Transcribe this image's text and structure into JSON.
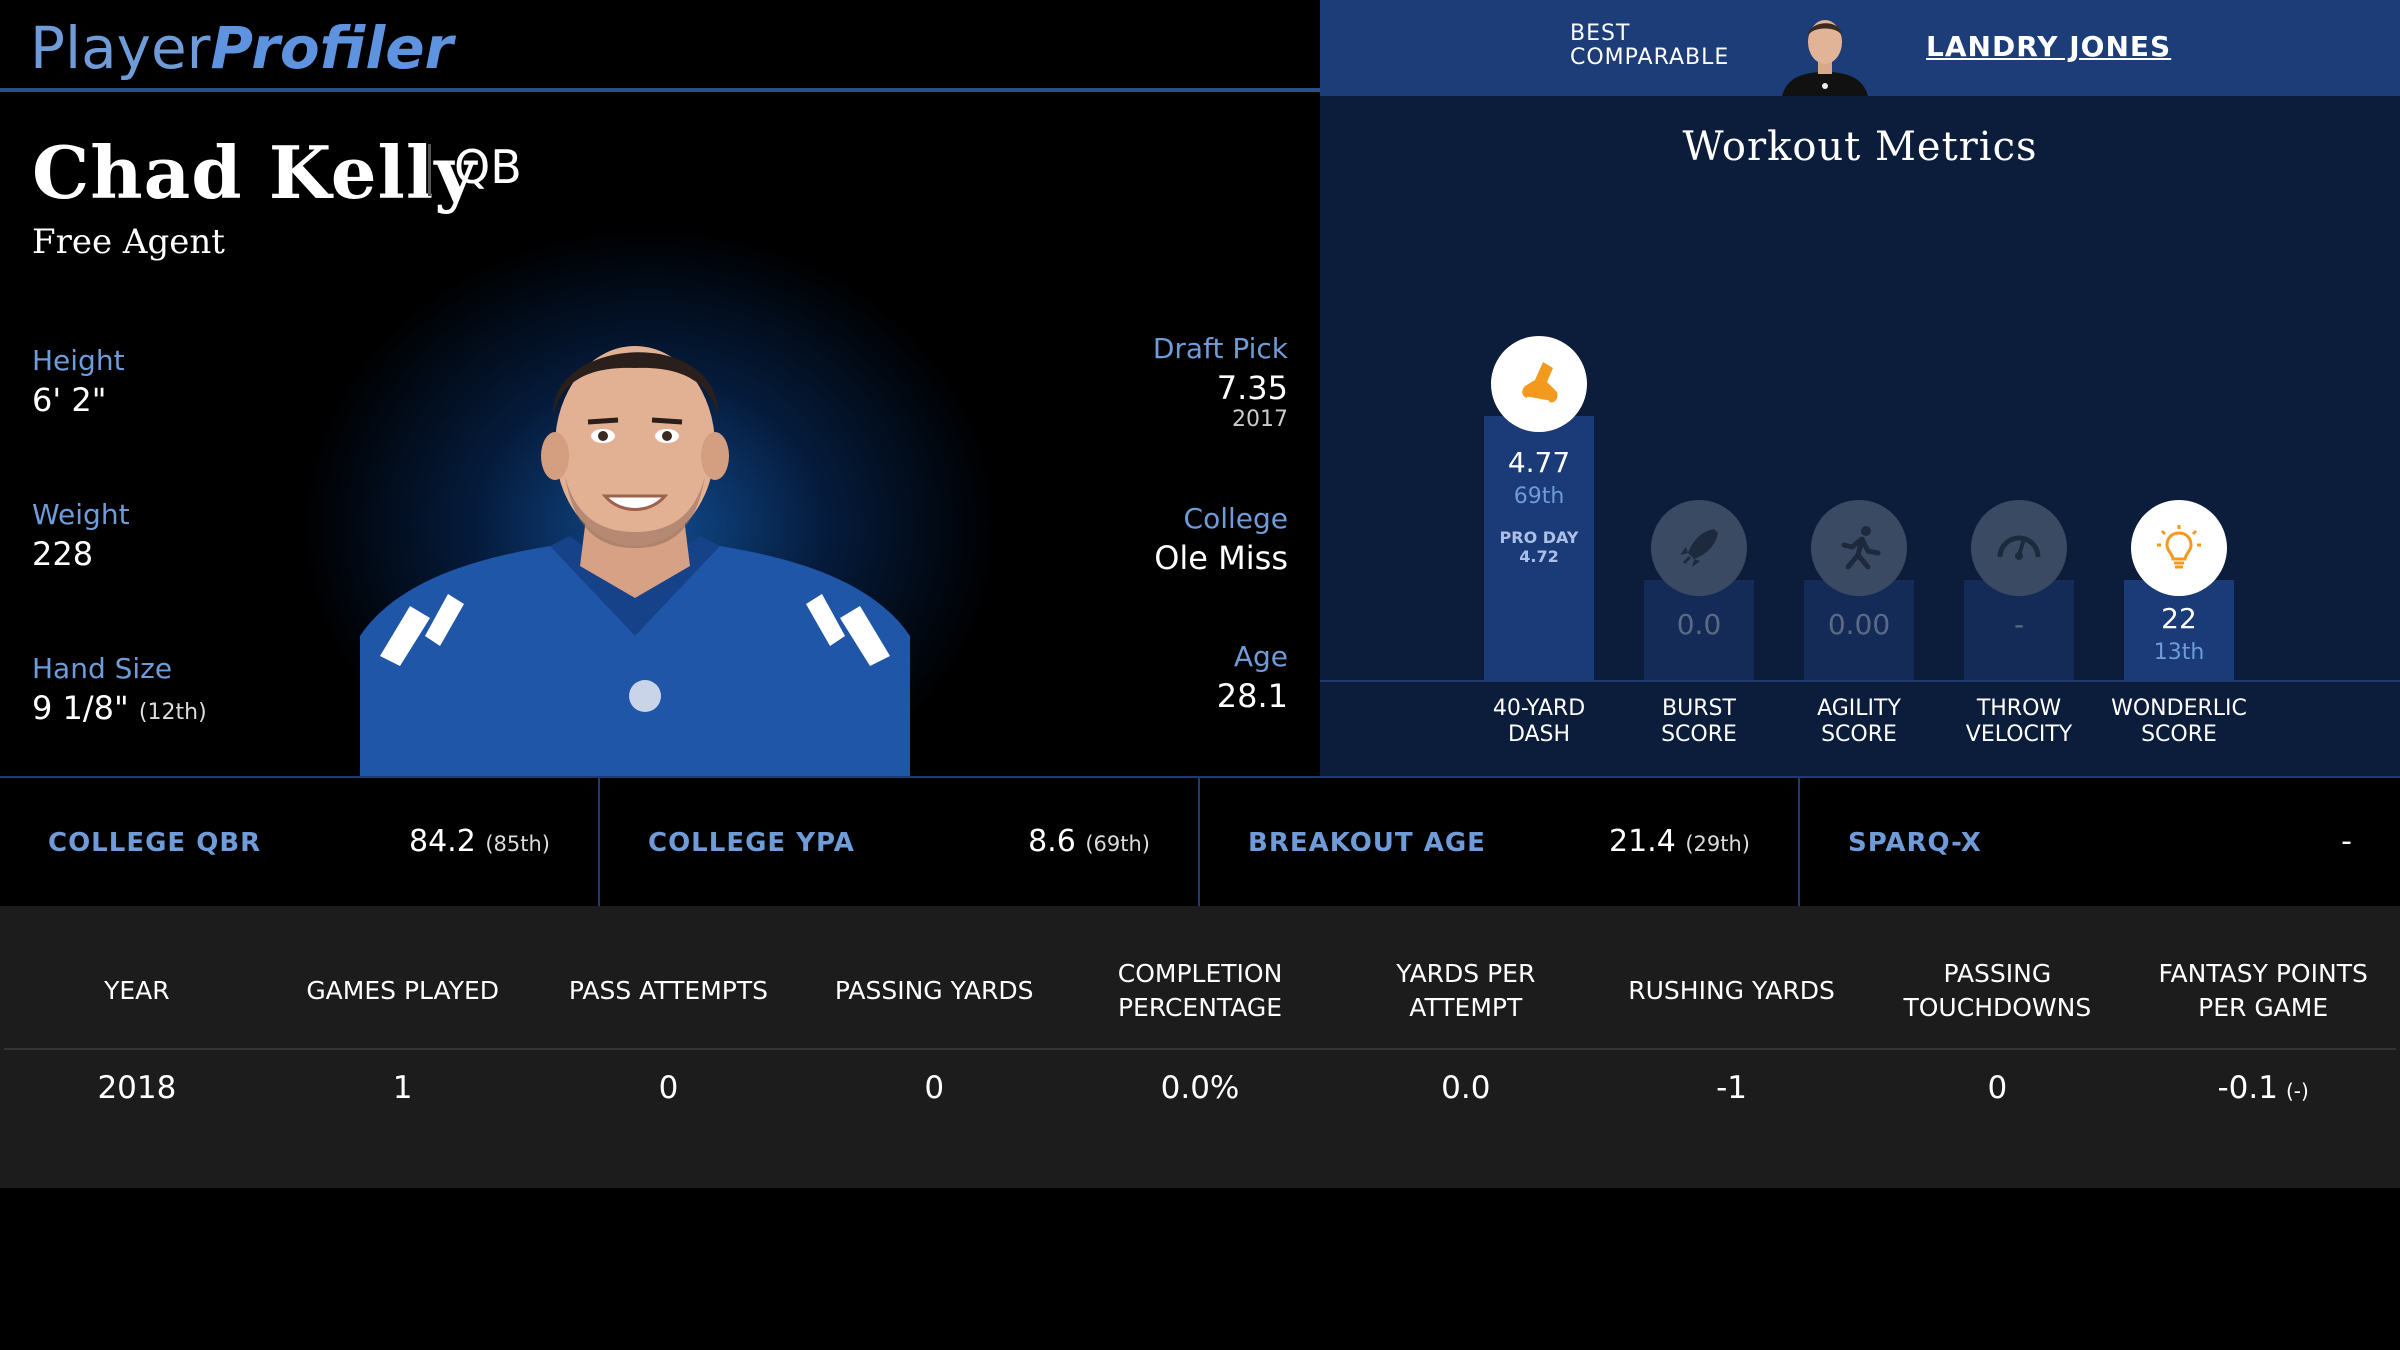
{
  "brand": {
    "name_part1": "Player",
    "name_part2": "Profiler"
  },
  "comparable": {
    "label_line1": "BEST",
    "label_line2": "COMPARABLE",
    "name": "LANDRY JONES"
  },
  "player": {
    "name": "Chad Kelly",
    "position": "QB",
    "team": "Free Agent",
    "height_label": "Height",
    "height": "6' 2\"",
    "weight_label": "Weight",
    "weight": "228",
    "hand_label": "Hand Size",
    "hand": "9 1/8\"",
    "hand_pct": "(12th)",
    "draft_label": "Draft Pick",
    "draft": "7.35",
    "draft_year": "2017",
    "college_label": "College",
    "college": "Ole Miss",
    "age_label": "Age",
    "age": "28.1"
  },
  "workout": {
    "title": "Workout Metrics",
    "metrics": [
      {
        "icon": "shoe-icon",
        "value": "4.77",
        "pct": "69th",
        "extra1": "PRO DAY",
        "extra2": "4.72",
        "label1": "40-YARD",
        "label2": "DASH",
        "fill": 0.69
      },
      {
        "icon": "rocket-icon",
        "value": "0.0",
        "pct": "",
        "extra1": "",
        "extra2": "",
        "label1": "BURST",
        "label2": "SCORE",
        "fill": 0
      },
      {
        "icon": "runner-icon",
        "value": "0.00",
        "pct": "",
        "extra1": "",
        "extra2": "",
        "label1": "AGILITY",
        "label2": "SCORE",
        "fill": 0
      },
      {
        "icon": "gauge-icon",
        "value": "-",
        "pct": "",
        "extra1": "",
        "extra2": "",
        "label1": "THROW",
        "label2": "VELOCITY",
        "fill": 0
      },
      {
        "icon": "lightbulb-icon",
        "value": "22",
        "pct": "13th",
        "extra1": "",
        "extra2": "",
        "label1": "WONDERLIC",
        "label2": "SCORE",
        "fill": 0.13
      }
    ]
  },
  "key_stats": [
    {
      "label": "COLLEGE QBR",
      "value": "84.2",
      "pct": "(85th)"
    },
    {
      "label": "COLLEGE YPA",
      "value": "8.6",
      "pct": "(69th)"
    },
    {
      "label": "BREAKOUT AGE",
      "value": "21.4",
      "pct": "(29th)"
    },
    {
      "label": "SPARQ-X",
      "value": "-",
      "pct": ""
    }
  ],
  "table": {
    "headers": [
      "YEAR",
      "GAMES PLAYED",
      "PASS ATTEMPTS",
      "PASSING YARDS",
      "COMPLETION PERCENTAGE",
      "YARDS PER ATTEMPT",
      "RUSHING YARDS",
      "PASSING TOUCHDOWNS",
      "FANTASY POINTS PER GAME"
    ],
    "rows": [
      [
        "2018",
        "1",
        "0",
        "0",
        "0.0%",
        "0.0",
        "-1",
        "0",
        "-0.1"
      ]
    ],
    "row_extra": "(-)"
  },
  "colors": {
    "accent": "#6f9bd9",
    "panel": "#0c1d3c",
    "bar": "#1d3d78",
    "icon_orange": "#f39a1e"
  }
}
